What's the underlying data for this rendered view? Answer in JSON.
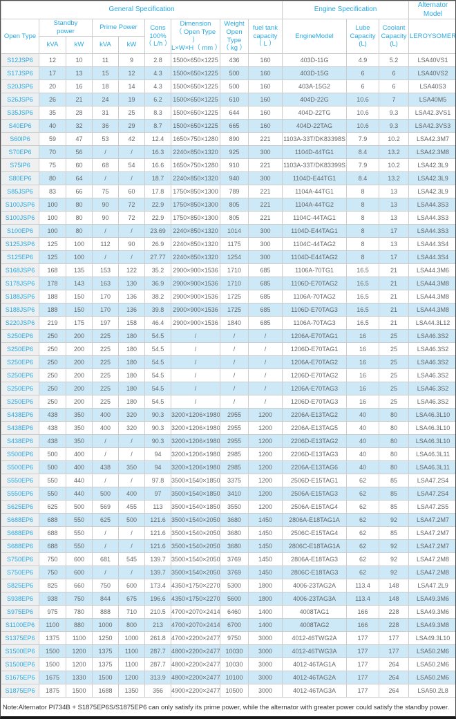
{
  "header": {
    "general_spec": "General Specification",
    "engine_spec": "Engine Specification",
    "alternator_model": "Alternator Model",
    "open_type": "Open Type",
    "standby_power": "Standby\npower",
    "prime_power": "Prime Power",
    "kva": "kVA",
    "kw": "kW",
    "cons": "Cons\n100%\n（ L/h ）",
    "dimension": "Dimension\n（ Open Type ）\nL×W×H（ mm ）",
    "weight": "Weight\nOpen Type\n（ kg ）",
    "fuel_tank": "fuel tank\ncapacity\n（ L ）",
    "engine_model": "EngineModel",
    "lube_capacity": "Lube\nCapacity\n(L)",
    "coolant_capacity": "Coolant\nCapacity\n(L)",
    "leroysomer": "LEROYSOMER"
  },
  "colors": {
    "accent": "#29a9e1",
    "stripe": "#cde9f8",
    "model_cell_bg": "#f0f0f0",
    "border": "#cccccc",
    "data_text": "#666666"
  },
  "table": {
    "columns": [
      "Open Type",
      "Standby power kVA",
      "Standby power kW",
      "Prime Power kVA",
      "Prime Power kW",
      "Cons 100% (L/h)",
      "Dimension (Open Type) L×W×H (mm)",
      "Weight Open Type (kg)",
      "fuel tank capacity (L)",
      "EngineModel",
      "Lube Capacity (L)",
      "Coolant Capacity (L)",
      "LEROYSOMER"
    ],
    "rows": [
      [
        "S12JSP6",
        "12",
        "10",
        "11",
        "9",
        "2.8",
        "1500×650×1225",
        "436",
        "160",
        "403D-11G",
        "4.9",
        "5.2",
        "LSA40VS1"
      ],
      [
        "S17JSP6",
        "17",
        "13",
        "15",
        "12",
        "4.3",
        "1500×650×1225",
        "500",
        "160",
        "403D-15G",
        "6",
        "6",
        "LSA40VS2"
      ],
      [
        "S20JSP6",
        "20",
        "16",
        "18",
        "14",
        "4.3",
        "1500×650×1225",
        "500",
        "160",
        "403A-15G2",
        "6",
        "6",
        "LSA40S3"
      ],
      [
        "S26JSP6",
        "26",
        "21",
        "24",
        "19",
        "6.2",
        "1500×650×1225",
        "610",
        "160",
        "404D-22G",
        "10.6",
        "7",
        "LSA40M5"
      ],
      [
        "S35JSP6",
        "35",
        "28",
        "31",
        "25",
        "8.3",
        "1500×650×1225",
        "644",
        "160",
        "404D-22TG",
        "10.6",
        "9.3",
        "LSA42.3VS1"
      ],
      [
        "S40EP6",
        "40",
        "32",
        "36",
        "29",
        "8.7",
        "1500×650×1225",
        "665",
        "160",
        "404D-22TAG",
        "10.6",
        "9.3",
        "LSA42.3VS3"
      ],
      [
        "S60IP6",
        "59",
        "47",
        "53",
        "42",
        "12.4",
        "1650×750×1280",
        "890",
        "221",
        "1103A-33T/DK83398S",
        "7.9",
        "10.2",
        "LSA42.3M7"
      ],
      [
        "S70EP6",
        "70",
        "56",
        "/",
        "/",
        "16.3",
        "2240×850×1320",
        "925",
        "300",
        "1104D-44TG1",
        "8.4",
        "13.2",
        "LSA42.3M8"
      ],
      [
        "S75IP6",
        "75",
        "60",
        "68",
        "54",
        "16.6",
        "1650×750×1280",
        "910",
        "221",
        "1103A-33T/DK83399S",
        "7.9",
        "10.2",
        "LSA42.3L9"
      ],
      [
        "S80EP6",
        "80",
        "64",
        "/",
        "/",
        "18.7",
        "2240×850×1320",
        "940",
        "300",
        "1104D-E44TG1",
        "8.4",
        "13.2",
        "LSA42.3L9"
      ],
      [
        "S85JSP6",
        "83",
        "66",
        "75",
        "60",
        "17.8",
        "1750×850×1300",
        "789",
        "221",
        "1104A-44TG1",
        "8",
        "13",
        "LSA42.3L9"
      ],
      [
        "S100JSP6",
        "100",
        "80",
        "90",
        "72",
        "22.9",
        "1750×850×1300",
        "805",
        "221",
        "1104A-44TG2",
        "8",
        "13",
        "LSA44.3S3"
      ],
      [
        "S100JSP6",
        "100",
        "80",
        "90",
        "72",
        "22.9",
        "1750×850×1300",
        "805",
        "221",
        "1104C-44TAG1",
        "8",
        "13",
        "LSA44.3S3"
      ],
      [
        "S100EP6",
        "100",
        "80",
        "/",
        "/",
        "23.69",
        "2240×850×1320",
        "1014",
        "300",
        "1104D-E44TAG1",
        "8",
        "17",
        "LSA44.3S3"
      ],
      [
        "S125JSP6",
        "125",
        "100",
        "112",
        "90",
        "26.9",
        "2240×850×1320",
        "1175",
        "300",
        "1104C-44TAG2",
        "8",
        "13",
        "LSA44.3S4"
      ],
      [
        "S125EP6",
        "125",
        "100",
        "/",
        "/",
        "27.77",
        "2240×850×1320",
        "1254",
        "300",
        "1104D-E44TAG2",
        "8",
        "17",
        "LSA44.3S4"
      ],
      [
        "S168JSP6",
        "168",
        "135",
        "153",
        "122",
        "35.2",
        "2900×900×1536",
        "1710",
        "685",
        "1106A-70TG1",
        "16.5",
        "21",
        "LSA44.3M6"
      ],
      [
        "S178JSP6",
        "178",
        "143",
        "163",
        "130",
        "36.9",
        "2900×900×1536",
        "1710",
        "685",
        "1106D-E70TAG2",
        "16.5",
        "21",
        "LSA44.3M8"
      ],
      [
        "S188JSP6",
        "188",
        "150",
        "170",
        "136",
        "38.2",
        "2900×900×1536",
        "1725",
        "685",
        "1106A-70TAG2",
        "16.5",
        "21",
        "LSA44.3M8"
      ],
      [
        "S188JSP6",
        "188",
        "150",
        "170",
        "136",
        "39.8",
        "2900×900×1536",
        "1725",
        "685",
        "1106D-E70TAG3",
        "16.5",
        "21",
        "LSA44.3M8"
      ],
      [
        "S220JSP6",
        "219",
        "175",
        "197",
        "158",
        "46.4",
        "2900×900×1536",
        "1840",
        "685",
        "1106A-70TAG3",
        "16.5",
        "21",
        "LSA44.3L12"
      ],
      [
        "S250EP6",
        "250",
        "200",
        "225",
        "180",
        "54.5",
        "/",
        "/",
        "/",
        "1206A-E70TAG1",
        "16",
        "25",
        "LSA46.3S2"
      ],
      [
        "S250EP6",
        "250",
        "200",
        "225",
        "180",
        "54.5",
        "/",
        "/",
        "/",
        "1206D-E70TAG1",
        "16",
        "25",
        "LSA46.3S2"
      ],
      [
        "S250EP6",
        "250",
        "200",
        "225",
        "180",
        "54.5",
        "/",
        "/",
        "/",
        "1206A-E70TAG2",
        "16",
        "25",
        "LSA46.3S2"
      ],
      [
        "S250EP6",
        "250",
        "200",
        "225",
        "180",
        "54.5",
        "/",
        "/",
        "/",
        "1206D-E70TAG2",
        "16",
        "25",
        "LSA46.3S2"
      ],
      [
        "S250EP6",
        "250",
        "200",
        "225",
        "180",
        "54.5",
        "/",
        "/",
        "/",
        "1206A-E70TAG3",
        "16",
        "25",
        "LSA46.3S2"
      ],
      [
        "S250EP6",
        "250",
        "200",
        "225",
        "180",
        "54.5",
        "/",
        "/",
        "/",
        "1206D-E70TAG3",
        "16",
        "25",
        "LSA46.3S2"
      ],
      [
        "S438EP6",
        "438",
        "350",
        "400",
        "320",
        "90.3",
        "3200×1206×1980",
        "2955",
        "1200",
        "2206A-E13TAG2",
        "40",
        "80",
        "LSA46.3L10"
      ],
      [
        "S438EP6",
        "438",
        "350",
        "400",
        "320",
        "90.3",
        "3200×1206×1980",
        "2955",
        "1200",
        "2206A-E13TAG5",
        "40",
        "80",
        "LSA46.3L10"
      ],
      [
        "S438EP6",
        "438",
        "350",
        "/",
        "/",
        "90.3",
        "3200×1206×1980",
        "2955",
        "1200",
        "2206D-E13TAG2",
        "40",
        "80",
        "LSA46.3L10"
      ],
      [
        "S500EP6",
        "500",
        "400",
        "/",
        "/",
        "94",
        "3200×1206×1980",
        "2985",
        "1200",
        "2206D-E13TAG3",
        "40",
        "80",
        "LSA46.3L11"
      ],
      [
        "S500EP6",
        "500",
        "400",
        "438",
        "350",
        "94",
        "3200×1206×1980",
        "2985",
        "1200",
        "2206A-E13TAG6",
        "40",
        "80",
        "LSA46.3L11"
      ],
      [
        "S550EP6",
        "550",
        "440",
        "/",
        "/",
        "97.8",
        "3500×1540×1850",
        "3375",
        "1200",
        "2506D-E15TAG1",
        "62",
        "85",
        "LSA47.2S4"
      ],
      [
        "S550EP6",
        "550",
        "440",
        "500",
        "400",
        "97",
        "3500×1540×1850",
        "3410",
        "1200",
        "2506A-E15TAG3",
        "62",
        "85",
        "LSA47.2S4"
      ],
      [
        "S625EP6",
        "625",
        "500",
        "569",
        "455",
        "113",
        "3500×1540×1850",
        "3550",
        "1200",
        "2506A-E15TAG4",
        "62",
        "85",
        "LSA47.2S5"
      ],
      [
        "S688EP6",
        "688",
        "550",
        "625",
        "500",
        "121.6",
        "3500×1540×2050",
        "3680",
        "1450",
        "2806A-E18TAG1A",
        "62",
        "92",
        "LSA47.2M7"
      ],
      [
        "S688EP6",
        "688",
        "550",
        "/",
        "/",
        "121.6",
        "3500×1540×2050",
        "3680",
        "1450",
        "2506C-E15TAG4",
        "62",
        "85",
        "LSA47.2M7"
      ],
      [
        "S688EP6",
        "688",
        "550",
        "/",
        "/",
        "121.6",
        "3500×1540×2050",
        "3680",
        "1450",
        "2806C-E18TAG1A",
        "62",
        "92",
        "LSA47.2M7"
      ],
      [
        "S750EP6",
        "750",
        "600",
        "681",
        "545",
        "139.7",
        "3500×1540×2050",
        "3769",
        "1450",
        "2806A-E18TAG3",
        "62",
        "92",
        "LSA47.2M8"
      ],
      [
        "S750EP6",
        "750",
        "600",
        "/",
        "/",
        "139.7",
        "3500×1540×2050",
        "3769",
        "1450",
        "2806C-E18TAG3",
        "62",
        "92",
        "LSA47.2M8"
      ],
      [
        "S825EP6",
        "825",
        "660",
        "750",
        "600",
        "173.4",
        "4350×1750×2270",
        "5300",
        "1800",
        "4006-23TAG2A",
        "113.4",
        "148",
        "LSA47.2L9"
      ],
      [
        "S938EP6",
        "938",
        "750",
        "844",
        "675",
        "196.6",
        "4350×1750×2270",
        "5600",
        "1800",
        "4006-23TAG3A",
        "113.4",
        "148",
        "LSA49.3M6"
      ],
      [
        "S975EP6",
        "975",
        "780",
        "888",
        "710",
        "210.5",
        "4700×2070×2414",
        "6460",
        "1400",
        "4008TAG1",
        "166",
        "228",
        "LSA49.3M6"
      ],
      [
        "S1100EP6",
        "1100",
        "880",
        "1000",
        "800",
        "213",
        "4700×2070×2414",
        "6700",
        "1400",
        "4008TAG2",
        "166",
        "228",
        "LSA49.3M8"
      ],
      [
        "S1375EP6",
        "1375",
        "1100",
        "1250",
        "1000",
        "261.8",
        "4700×2200×2477",
        "9750",
        "3000",
        "4012-46TWG2A",
        "177",
        "177",
        "LSA49.3L10"
      ],
      [
        "S1500EP6",
        "1500",
        "1200",
        "1375",
        "1100",
        "287.7",
        "4800×2200×2477",
        "10030",
        "3000",
        "4012-46TWG3A",
        "177",
        "177",
        "LSA50.2M6"
      ],
      [
        "S1500EP6",
        "1500",
        "1200",
        "1375",
        "1100",
        "287.7",
        "4800×2200×2477",
        "10030",
        "3000",
        "4012-46TAG1A",
        "177",
        "264",
        "LSA50.2M6"
      ],
      [
        "S1675EP6",
        "1675",
        "1330",
        "1500",
        "1200",
        "313.9",
        "4800×2200×2477",
        "10100",
        "3000",
        "4012-46TAG2A",
        "177",
        "264",
        "LSA50.2M6"
      ],
      [
        "S1875EP6",
        "1875",
        "1500",
        "1688",
        "1350",
        "356",
        "4900×2200×2477",
        "10500",
        "3000",
        "4012-46TAG3A",
        "177",
        "264",
        "LSA50.2L8"
      ]
    ]
  },
  "note": "Note:Alternator PI734B + S1875EP6S/S1875EP6 can only satisfy its prime power, while the alternator with greater power could satisfy the standby power."
}
